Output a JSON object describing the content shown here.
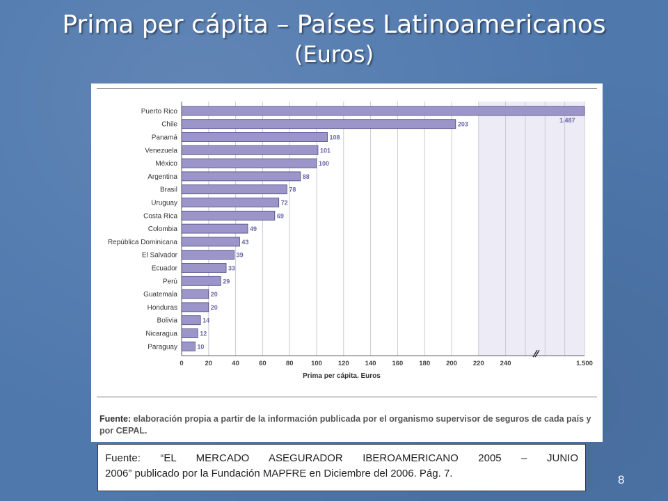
{
  "slide": {
    "title": "Prima per cápita – Países Latinoamericanos",
    "subtitle": "(Euros)",
    "page_number": "8"
  },
  "chart_source": {
    "label": "Fuente:",
    "text": "elaboración propia a partir de la información publicada por el organismo supervisor de seguros de cada país y por CEPAL."
  },
  "source_box": {
    "line1": "Fuente: “EL MERCADO ASEGURADOR IBEROAMERICANO 2005 – JUNIO",
    "line2": "2006” publicado por la Fundación MAPFRE en Diciembre del 2006. Pág. 7."
  },
  "colors": {
    "bar": "#9b95c9",
    "bar_stroke": "#4a4680",
    "value_label": "#6a66a8"
  },
  "chart_data": {
    "type": "bar",
    "orientation": "horizontal",
    "title": "",
    "xlabel": "Prima per cápita. Euros",
    "ylabel": "",
    "axis_break": "between 240 and 1.500",
    "xticks": [
      "0",
      "20",
      "40",
      "60",
      "80",
      "100",
      "120",
      "140",
      "160",
      "180",
      "200",
      "220",
      "240",
      "1.500"
    ],
    "xlim": [
      0,
      1500
    ],
    "grid": true,
    "categories": [
      "Puerto Rico",
      "Chile",
      "Panamá",
      "Venezuela",
      "México",
      "Argentina",
      "Brasil",
      "Uruguay",
      "Costa Rica",
      "Colombia",
      "República Dominicana",
      "El Salvador",
      "Ecuador",
      "Perú",
      "Guatemala",
      "Honduras",
      "Bolivia",
      "Nicaragua",
      "Paraguay"
    ],
    "values": [
      1487,
      203,
      108,
      101,
      100,
      88,
      78,
      72,
      69,
      49,
      43,
      39,
      33,
      29,
      20,
      20,
      14,
      12,
      10
    ],
    "value_labels": [
      "1.487",
      "203",
      "108",
      "101",
      "100",
      "88",
      "78",
      "72",
      "69",
      "49",
      "43",
      "39",
      "33",
      "29",
      "20",
      "20",
      "14",
      "12",
      "10"
    ]
  }
}
